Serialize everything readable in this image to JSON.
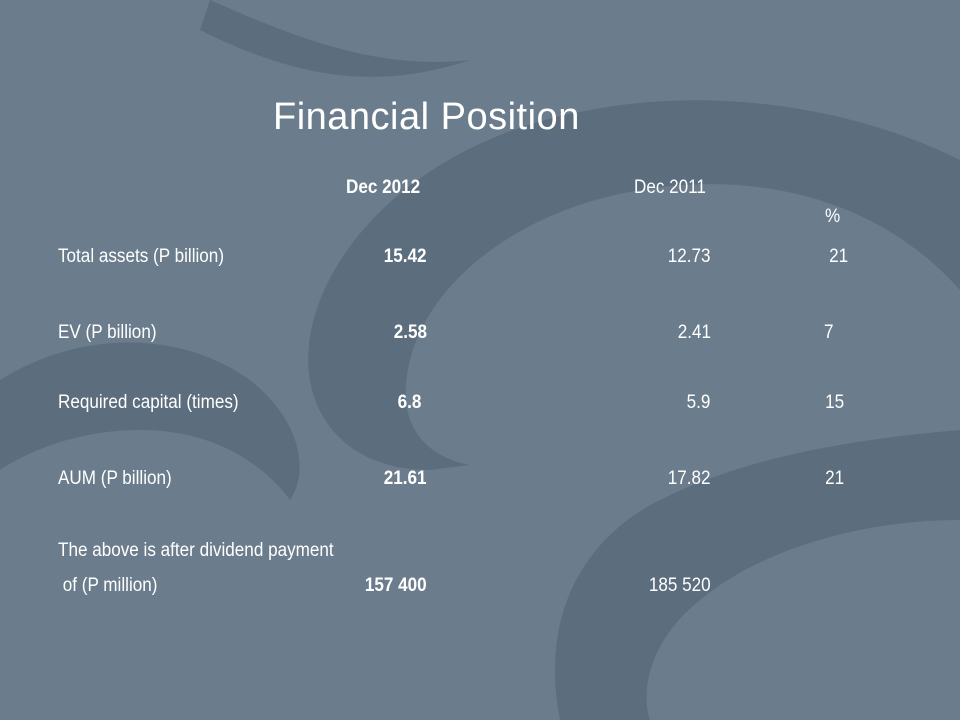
{
  "slide": {
    "title": "Financial Position",
    "headers": {
      "current": "Dec 2012",
      "prior": "Dec 2011",
      "change": "%"
    },
    "rows": [
      {
        "label": "Total assets (P billion)",
        "current": "15.42",
        "prior": "12.73",
        "change": "21"
      },
      {
        "label": "EV (P billion)",
        "current": "2.58",
        "prior": "2.41",
        "change": "7"
      },
      {
        "label": "Required capital (times)",
        "current": "6.8",
        "prior": "5.9",
        "change": "15"
      },
      {
        "label": "AUM (P billion)",
        "current": "21.61",
        "prior": "17.82",
        "change": "21"
      }
    ],
    "note": {
      "line1": "The above is after dividend payment",
      "line2": " of (P million)",
      "current": "157 400",
      "prior": "185 520"
    }
  },
  "colors": {
    "background": "#6b7d8d",
    "decoration": "#5c6d7e",
    "text": "#ffffff"
  }
}
